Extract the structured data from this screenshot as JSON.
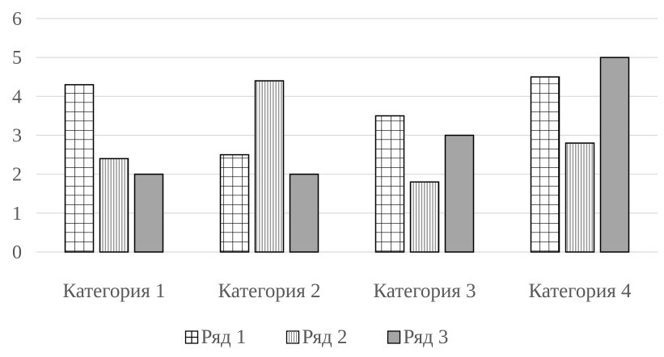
{
  "chart_data": {
    "type": "bar",
    "title": "",
    "xlabel": "",
    "ylabel": "",
    "categories": [
      "Категория 1",
      "Категория 2",
      "Категория 3",
      "Категория 4"
    ],
    "series": [
      {
        "name": "Ряд 1",
        "values": [
          4.3,
          2.5,
          3.5,
          4.5
        ],
        "pattern": "grid",
        "color": "#000000"
      },
      {
        "name": "Ряд 2",
        "values": [
          2.4,
          4.4,
          1.8,
          2.8
        ],
        "pattern": "vertical-lines",
        "color": "#7f7f7f"
      },
      {
        "name": "Ряд 3",
        "values": [
          2,
          2,
          3,
          5
        ],
        "pattern": "solid",
        "color": "#a5a5a5"
      }
    ],
    "ylim": [
      0,
      6
    ],
    "yticks": [
      "0",
      "1",
      "2",
      "3",
      "4",
      "5",
      "6"
    ],
    "grid": true,
    "legend_position": "bottom",
    "colors": {
      "gridline": "#d9d9d9",
      "bar_outline": "#000000",
      "text": "#595959",
      "solid_fill": "#a5a5a5"
    }
  }
}
